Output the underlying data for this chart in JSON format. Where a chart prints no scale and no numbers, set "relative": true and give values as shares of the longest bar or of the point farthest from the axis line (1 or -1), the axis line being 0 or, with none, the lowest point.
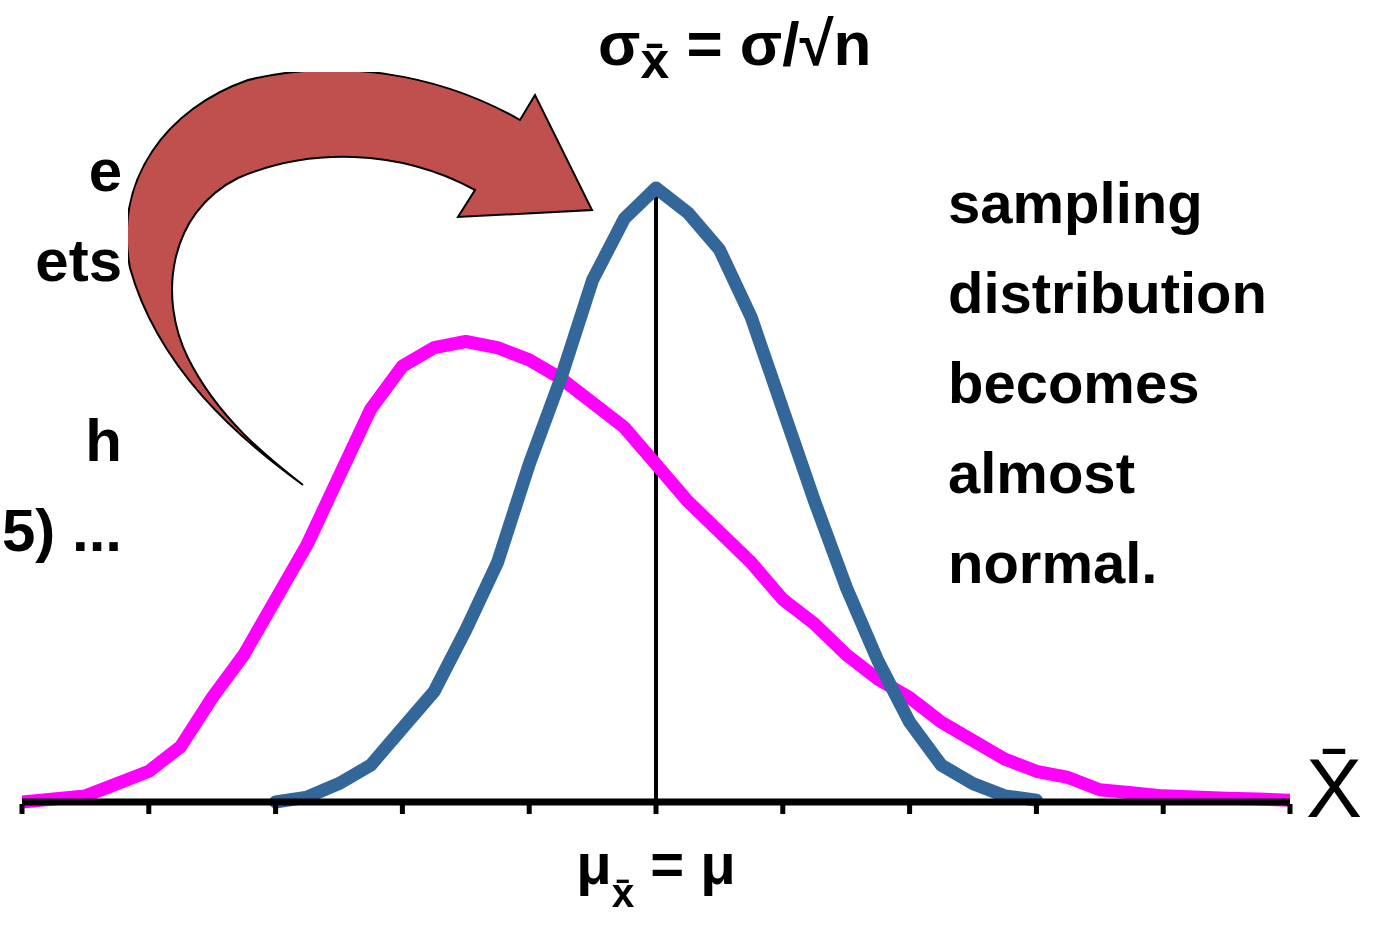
{
  "chart_data": {
    "type": "line",
    "relative": true,
    "xlabel": "X̄",
    "categories": [
      null,
      null,
      null,
      null,
      null,
      null,
      null,
      null,
      null,
      null,
      null,
      null,
      null,
      null,
      null,
      null,
      null,
      null,
      null,
      null,
      null,
      null,
      null,
      null,
      null,
      null,
      null,
      null,
      null,
      null,
      null,
      null,
      null,
      null,
      null,
      null,
      null,
      null,
      null,
      null,
      null
    ],
    "series": [
      {
        "color": "#ff00ff",
        "values": [
          0,
          0.005,
          0.01,
          0.03,
          0.05,
          0.09,
          0.17,
          0.24,
          0.33,
          0.42,
          0.53,
          0.64,
          0.71,
          0.74,
          0.75,
          0.74,
          0.72,
          0.69,
          0.65,
          0.61,
          0.55,
          0.49,
          0.44,
          0.39,
          0.33,
          0.29,
          0.24,
          0.2,
          0.17,
          0.13,
          0.1,
          0.07,
          0.05,
          0.04,
          0.02,
          0.015,
          0.01,
          0.008,
          0.006,
          0.005,
          0.003
        ]
      },
      {
        "color": "#336699",
        "values": [
          null,
          null,
          null,
          null,
          null,
          null,
          null,
          null,
          0,
          0.008,
          0.03,
          0.06,
          0.12,
          0.18,
          0.28,
          0.39,
          0.55,
          0.69,
          0.85,
          0.95,
          1,
          0.96,
          0.9,
          0.79,
          0.64,
          0.49,
          0.35,
          0.23,
          0.13,
          0.06,
          0.03,
          0.01,
          0.003,
          null,
          null,
          null,
          null,
          null,
          null,
          null,
          null
        ]
      }
    ],
    "ref_lines": [
      {
        "axis": "x",
        "label": "μ$_{x̄}$ = μ",
        "color": "#000000"
      }
    ],
    "annotations": [
      "σ$_{x̄}$ = σ/√n",
      "sampling distribution becomes almost normal.",
      "e\nets\n\nh\n5) ..."
    ],
    "grid": false,
    "marker": "none",
    "line_style": "solid"
  }
}
